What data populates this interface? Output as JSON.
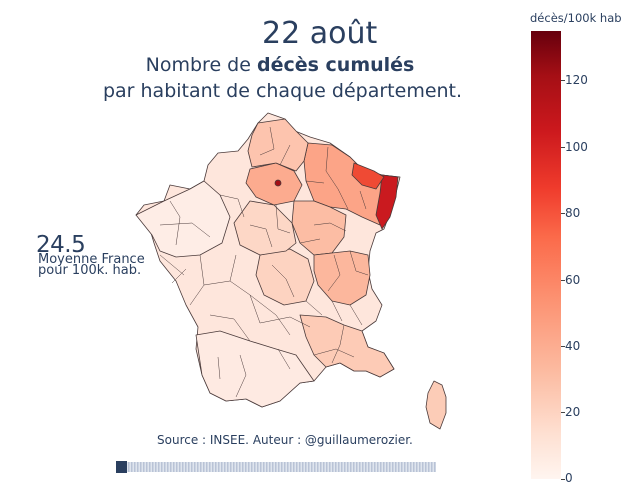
{
  "title": "22 août",
  "subtitle": {
    "prefix": "Nombre de ",
    "bold": "décès cumulés",
    "line2": "par habitant de chaque département."
  },
  "annotation": {
    "value": "24.5",
    "line1": "Moyenne France",
    "line2": "pour 100k. hab."
  },
  "source": "Source : INSEE. Auteur : @guillaumerozier.",
  "colorbar": {
    "title": "décès/100k hab",
    "ticks": [
      "120",
      "100",
      "80",
      "60",
      "40",
      "20",
      "0"
    ],
    "colorscale": [
      "#fff5f0",
      "#fee0d2",
      "#fcbba1",
      "#fc9272",
      "#fb6a4a",
      "#ef3b2c",
      "#cb181d",
      "#a50f15",
      "#67000d"
    ]
  },
  "slider": {
    "position": 0.0
  },
  "colors": {
    "text": "#2a3f5f",
    "border": "#4a3a3a"
  }
}
